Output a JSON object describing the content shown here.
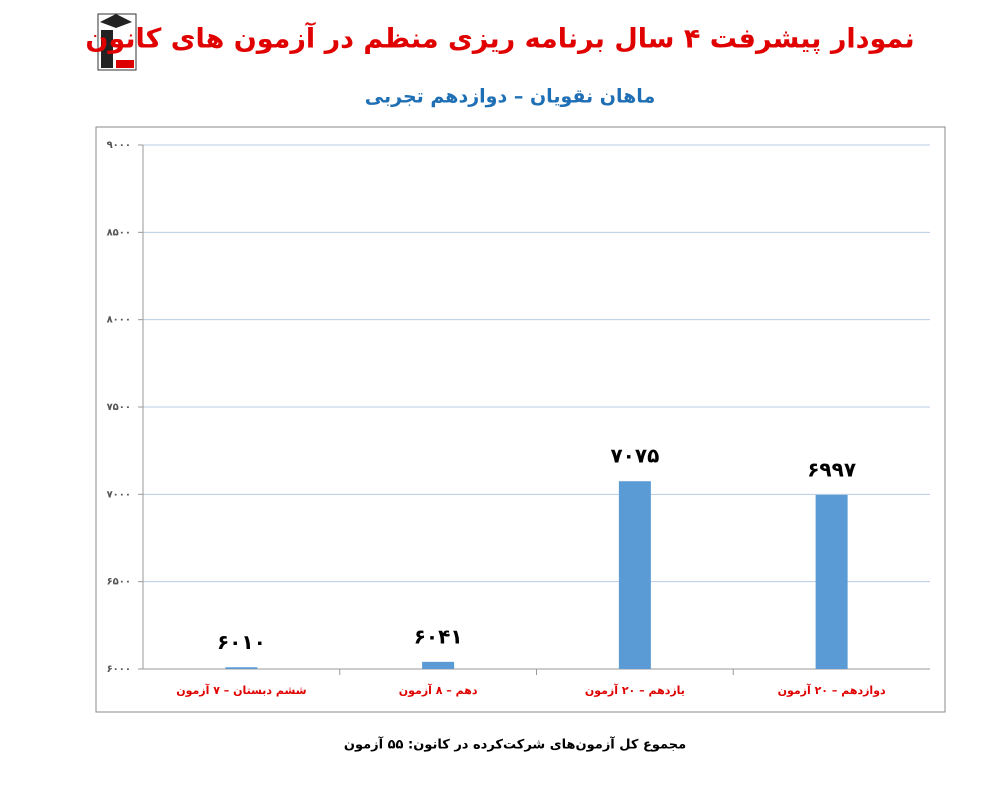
{
  "chart_data": {
    "type": "bar",
    "title": "نمودار پیشرفت ۴ سال برنامه ریزی منظم در آزمون های کانون",
    "subtitle": "ماهان نقویان – دوازدهم تجربی",
    "categories": [
      "ششم دبستان – ۷ آزمون",
      "دهم – ۸ آزمون",
      "یازدهم – ۲۰ آزمون",
      "دوازدهم – ۲۰ آزمون"
    ],
    "values": [
      6010,
      6041,
      7075,
      6997
    ],
    "value_labels": [
      "۶۰۱۰",
      "۶۰۴۱",
      "۷۰۷۵",
      "۶۹۹۷"
    ],
    "color": "#5b9bd5",
    "ylim": [
      6000,
      9000
    ],
    "yticks": [
      {
        "value": 6000,
        "label": "۶۰۰۰"
      },
      {
        "value": 6500,
        "label": "۶۵۰۰"
      },
      {
        "value": 7000,
        "label": "۷۰۰۰"
      },
      {
        "value": 7500,
        "label": "۷۵۰۰"
      },
      {
        "value": 8000,
        "label": "۸۰۰۰"
      },
      {
        "value": 8500,
        "label": "۸۵۰۰"
      },
      {
        "value": 9000,
        "label": "۹۰۰۰"
      }
    ],
    "grid": true,
    "annotation": "مجموع کل آزمون‌های شرکت‌کرده در کانون: ۵۵ آزمون"
  }
}
